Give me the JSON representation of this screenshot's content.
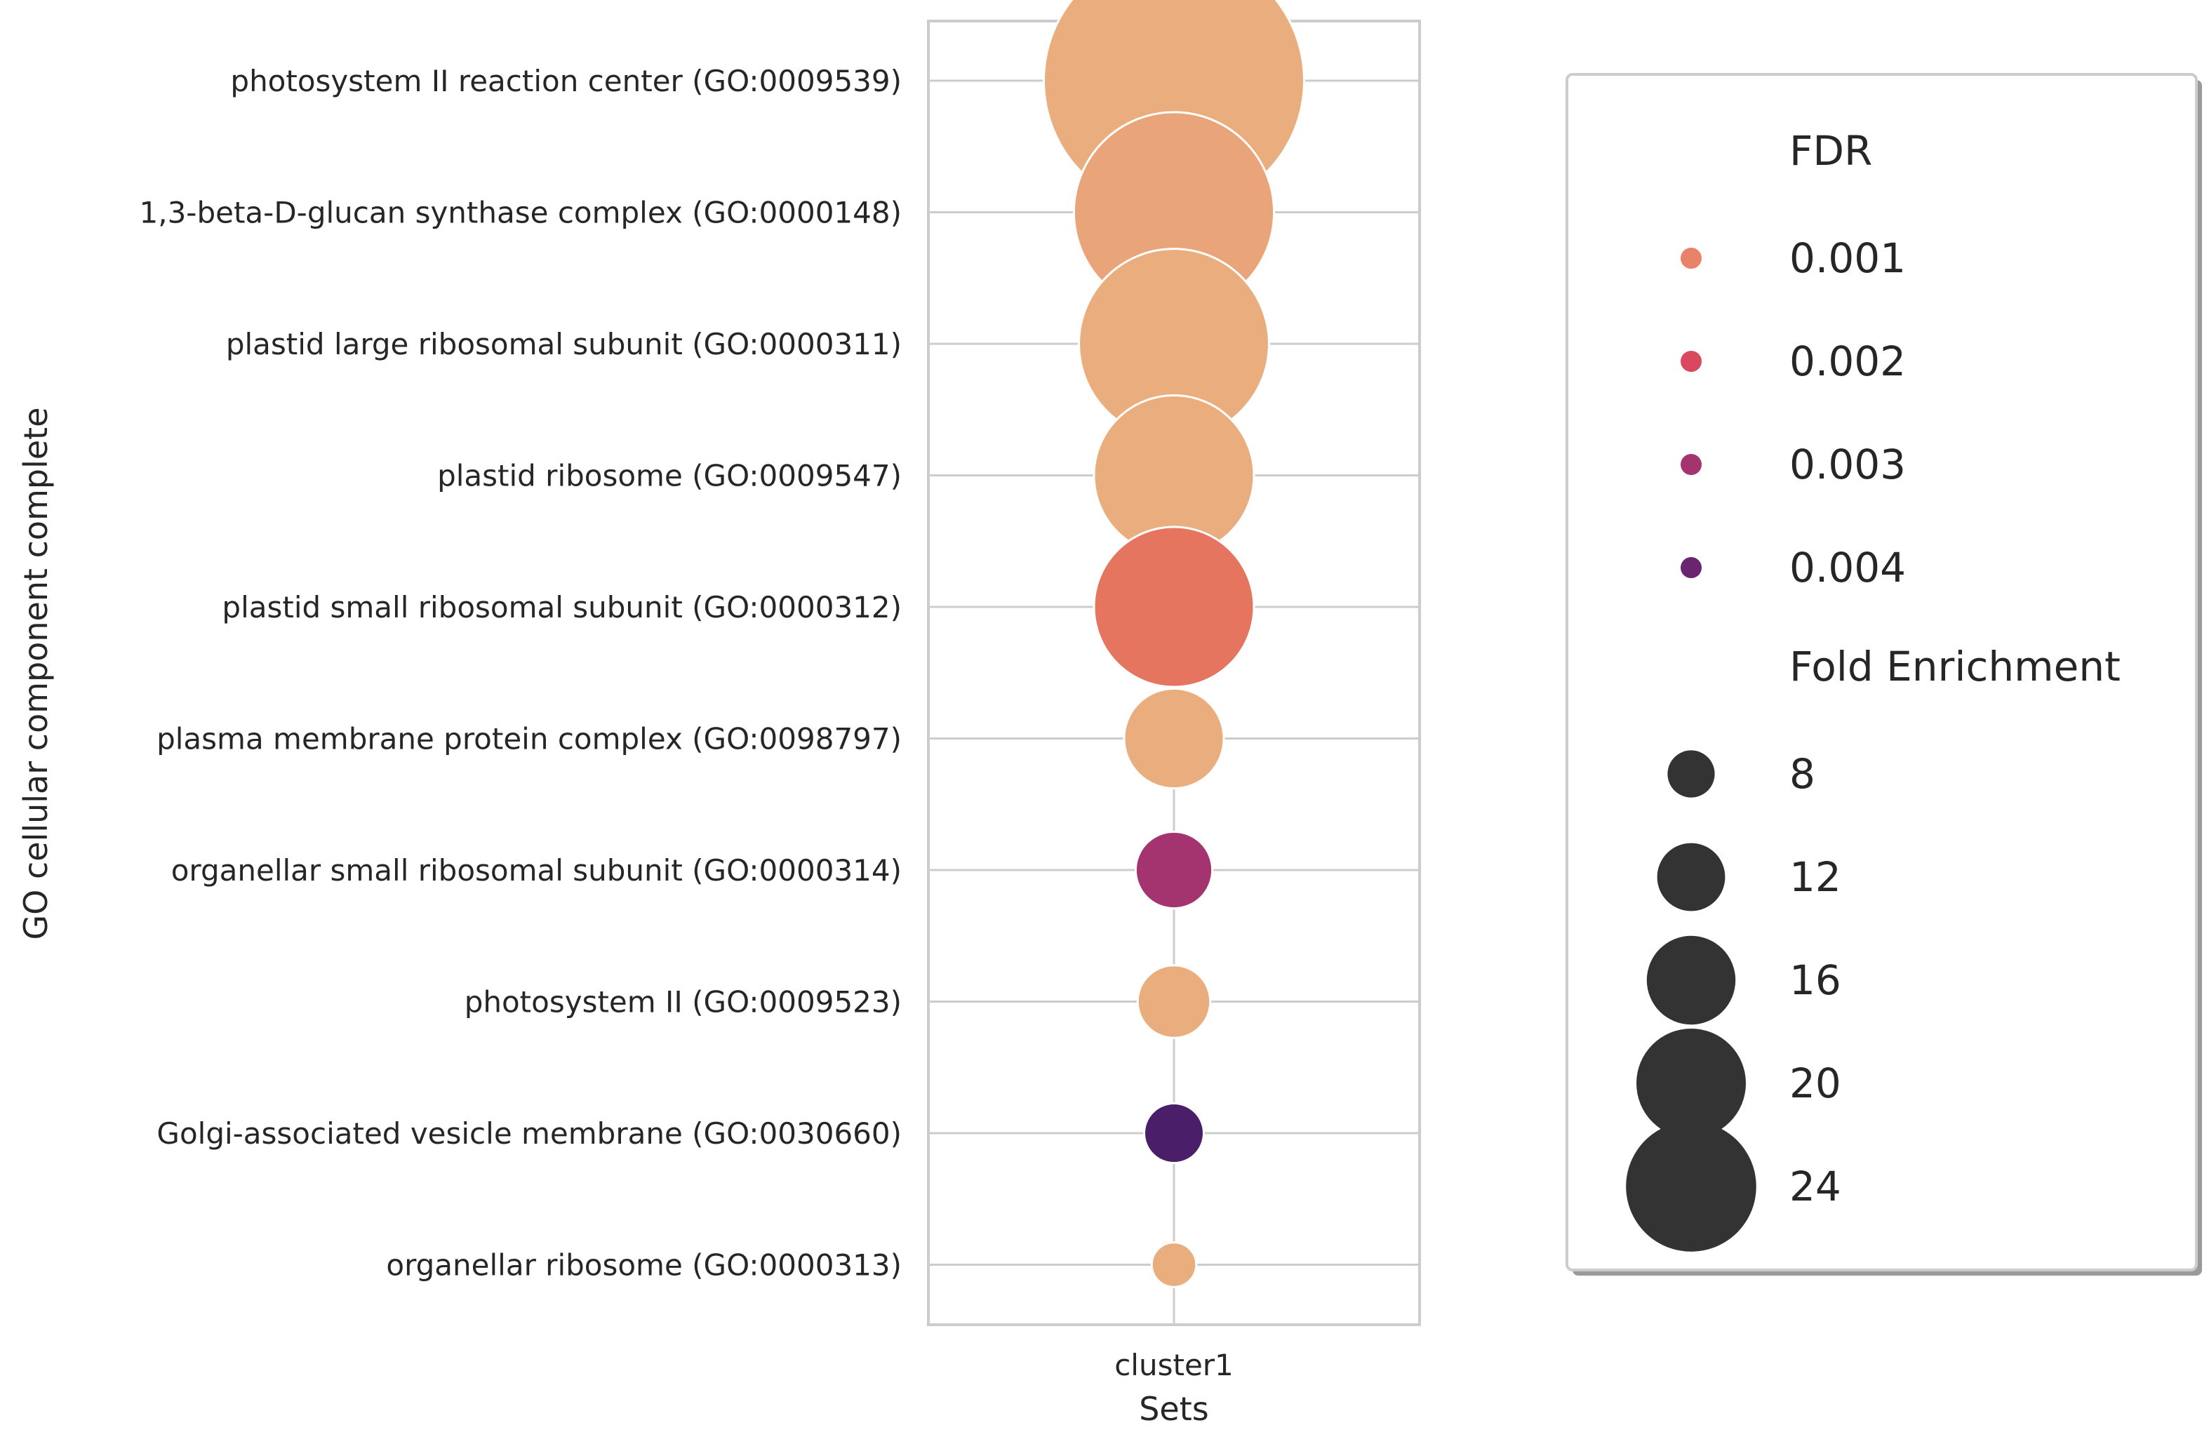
{
  "chart_data": {
    "type": "scatter",
    "title": "",
    "xlabel": "Sets",
    "ylabel": "GO cellular component complete",
    "x_categories": [
      "cluster1"
    ],
    "grid": true,
    "legend_placement": "right",
    "points": [
      {
        "term": "photosystem II reaction center (GO:0009539)",
        "set": "cluster1",
        "fold_enrichment": 26.5,
        "fdr": 0.0006
      },
      {
        "term": "1,3-beta-D-glucan synthase complex (GO:0000148)",
        "set": "cluster1",
        "fold_enrichment": 20.5,
        "fdr": 0.0007
      },
      {
        "term": "plastid large ribosomal subunit (GO:0000311)",
        "set": "cluster1",
        "fold_enrichment": 19.5,
        "fdr": 0.0006
      },
      {
        "term": "plastid ribosome (GO:0009547)",
        "set": "cluster1",
        "fold_enrichment": 16.5,
        "fdr": 0.0006
      },
      {
        "term": "plastid small ribosomal subunit (GO:0000312)",
        "set": "cluster1",
        "fold_enrichment": 16.5,
        "fdr": 0.0012
      },
      {
        "term": "plasma membrane protein complex (GO:0098797)",
        "set": "cluster1",
        "fold_enrichment": 10.5,
        "fdr": 0.0006
      },
      {
        "term": "organellar small ribosomal subunit (GO:0000314)",
        "set": "cluster1",
        "fold_enrichment": 8.2,
        "fdr": 0.003
      },
      {
        "term": "photosystem II (GO:0009523)",
        "set": "cluster1",
        "fold_enrichment": 7.8,
        "fdr": 0.0006
      },
      {
        "term": "Golgi-associated vesicle membrane (GO:0030660)",
        "set": "cluster1",
        "fold_enrichment": 6.5,
        "fdr": 0.0043
      },
      {
        "term": "organellar ribosome (GO:0000313)",
        "set": "cluster1",
        "fold_enrichment": 5.0,
        "fdr": 0.0006
      }
    ],
    "legend": {
      "color_title": "FDR",
      "color_items": [
        {
          "label": "0.001",
          "color": "#e8836a"
        },
        {
          "label": "0.002",
          "color": "#d9485f"
        },
        {
          "label": "0.003",
          "color": "#a3346f"
        },
        {
          "label": "0.004",
          "color": "#6b2470"
        }
      ],
      "size_title": "Fold Enrichment",
      "size_items": [
        {
          "label": "8",
          "value": 8
        },
        {
          "label": "12",
          "value": 12
        },
        {
          "label": "16",
          "value": 16
        },
        {
          "label": "20",
          "value": 20
        },
        {
          "label": "24",
          "value": 24
        }
      ],
      "size_marker_color": "#333333"
    }
  }
}
